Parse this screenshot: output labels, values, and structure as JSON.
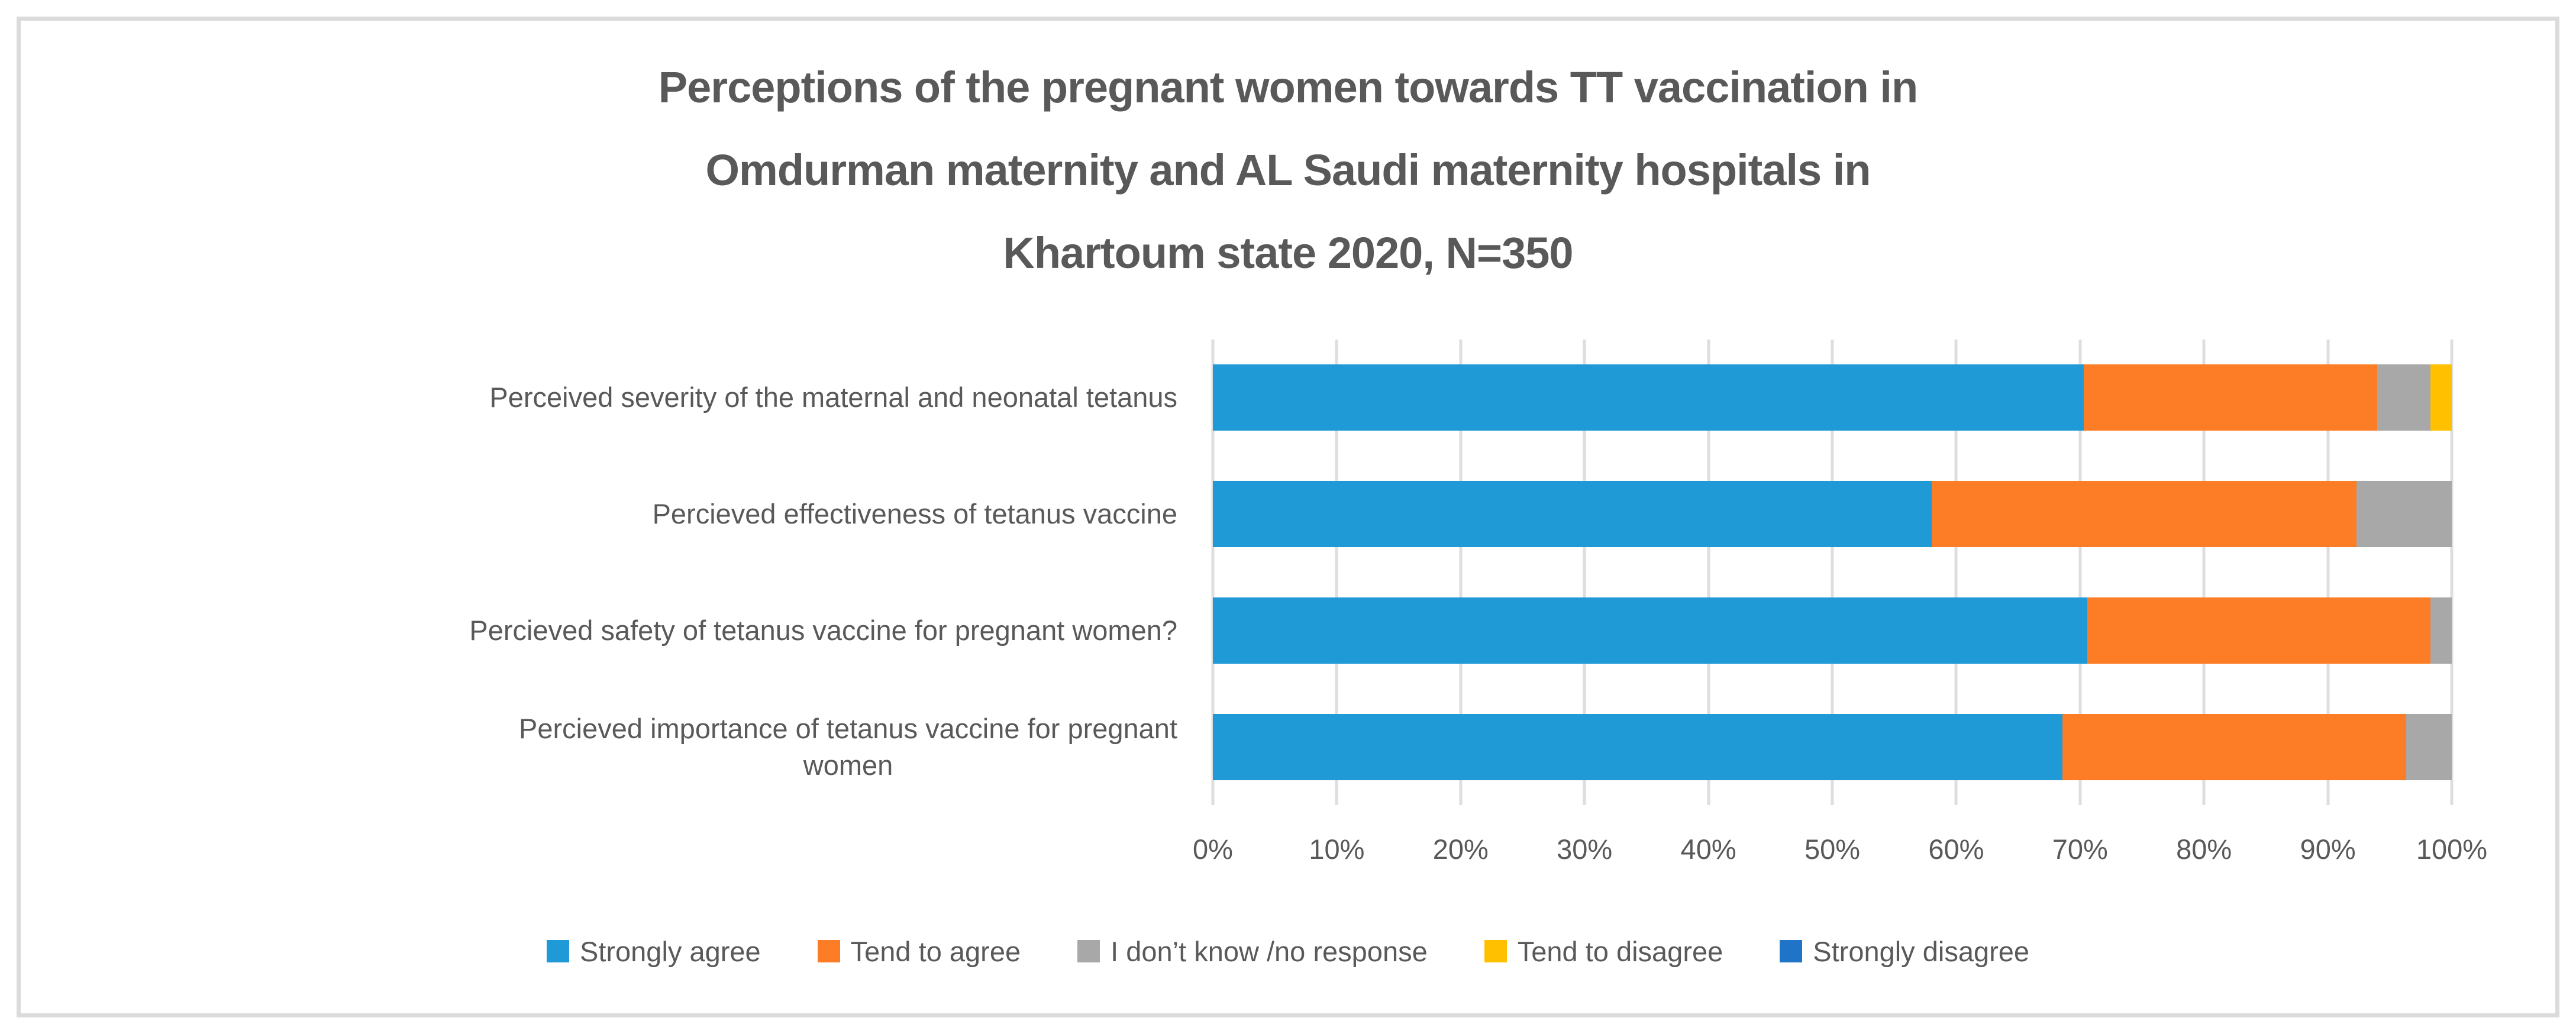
{
  "title": {
    "lines": [
      "Perceptions of the pregnant women towards TT vaccination in",
      "Omdurman maternity and AL Saudi maternity hospitals in",
      "Khartoum state 2020, N=350"
    ]
  },
  "colors": {
    "strongly_agree": "#2099d7",
    "tend_to_agree": "#fc7d25",
    "dont_know": "#a8a8a8",
    "tend_to_disagree": "#ffc000",
    "strongly_disagree": "#1f74c8",
    "gridline": "#dedede",
    "text": "#595959",
    "frame_border": "#dbdbdb"
  },
  "chart_data": {
    "type": "bar",
    "orientation": "horizontal",
    "stacked": true,
    "units": "percent",
    "title": "Perceptions of the pregnant women towards TT vaccination in Omdurman maternity and AL Saudi maternity hospitals in Khartoum state 2020, N=350",
    "sample_size_note": "N=350",
    "categories": [
      "Perceived severity of the maternal and neonatal tetanus",
      "Percieved effectiveness of tetanus vaccine",
      "Percieved safety of tetanus vaccine for pregnant women?",
      "Percieved importance of tetanus vaccine for pregnant\nwomen"
    ],
    "series": [
      {
        "name": "Strongly agree",
        "color": "#2099d7",
        "values": [
          70.3,
          58.0,
          70.6,
          68.6
        ]
      },
      {
        "name": "Tend to agree",
        "color": "#fc7d25",
        "values": [
          23.7,
          34.3,
          27.7,
          27.7
        ]
      },
      {
        "name": "I don’t know /no response",
        "color": "#a8a8a8",
        "values": [
          4.3,
          7.7,
          1.7,
          3.7
        ]
      },
      {
        "name": "Tend to disagree",
        "color": "#ffc000",
        "values": [
          1.7,
          0,
          0,
          0
        ]
      },
      {
        "name": "Strongly disagree",
        "color": "#1f74c8",
        "values": [
          0,
          0,
          0,
          0
        ]
      }
    ],
    "x_axis": {
      "min": 0,
      "max": 100,
      "tick_step_percent": 10,
      "tick_labels": [
        "0%",
        "10%",
        "20%",
        "30%",
        "40%",
        "50%",
        "60%",
        "70%",
        "80%",
        "90%",
        "100%"
      ]
    },
    "grid": true,
    "legend_position": "bottom"
  }
}
